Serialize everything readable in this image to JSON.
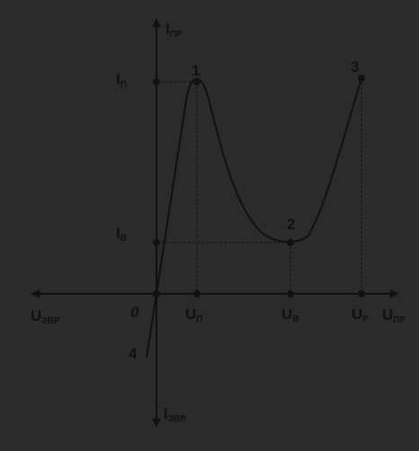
{
  "axes": {
    "y_positive": {
      "main": "I",
      "sub": "ПР"
    },
    "y_negative": {
      "main": "I",
      "sub": "ЗВР"
    },
    "x_positive": {
      "main": "U",
      "sub": "ПР"
    },
    "x_negative": {
      "main": "U",
      "sub": "ЗВР"
    },
    "origin": "0"
  },
  "current_ticks": {
    "peak": {
      "main": "I",
      "sub": "П"
    },
    "valley": {
      "main": "I",
      "sub": "В"
    }
  },
  "voltage_ticks": {
    "peak": {
      "main": "U",
      "sub": "П"
    },
    "valley": {
      "main": "U",
      "sub": "В"
    },
    "solution": {
      "main": "U",
      "sub": "Р"
    }
  },
  "points": {
    "p1": "1",
    "p2": "2",
    "p3": "3",
    "p4": "4"
  },
  "colors": {
    "background": "#2b2b2b",
    "ink": "#111111"
  }
}
